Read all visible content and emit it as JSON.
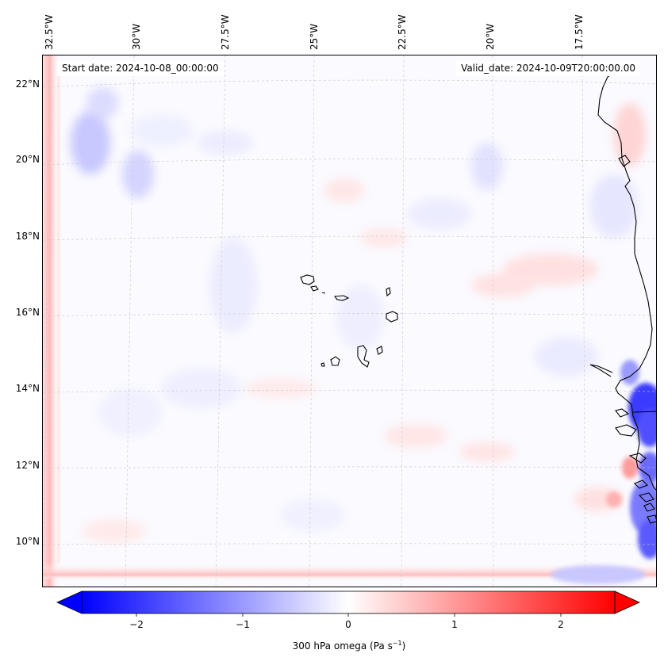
{
  "map": {
    "start_label": "Start date: 2024-10-08_00:00:00",
    "valid_label": "Valid_date: 2024-10-09T20:00:00.00",
    "lon_labels": [
      "32.5°W",
      "30°W",
      "27.5°W",
      "25°W",
      "22.5°W",
      "20°W",
      "17.5°W"
    ],
    "lat_labels": [
      "22°N",
      "20°N",
      "18°N",
      "16°N",
      "14°N",
      "12°N",
      "10°N"
    ]
  },
  "colorbar": {
    "ticks": [
      "−2",
      "−1",
      "0",
      "1",
      "2"
    ],
    "label_main": "300 hPa omega (Pa s",
    "label_exp": "−1",
    "label_close": ")",
    "vmin": -2.6,
    "vmax": 2.6
  },
  "colors": {
    "negative": "#0000ff",
    "neutral": "#ffffff",
    "positive": "#ff0000"
  }
}
